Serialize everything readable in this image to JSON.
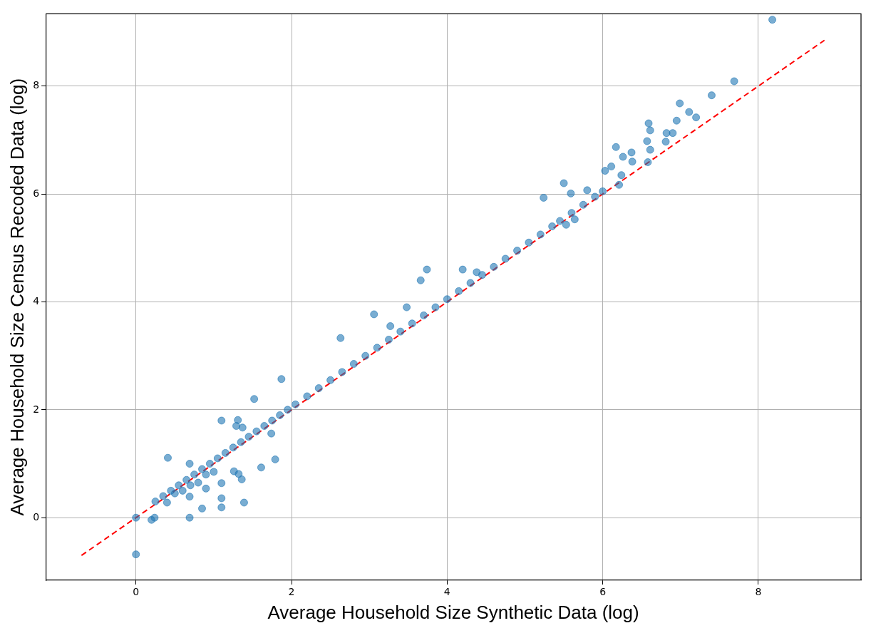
{
  "chart_data": {
    "type": "scatter",
    "xlabel": "Average Household Size Synthetic Data (log)",
    "ylabel": "Average Household Size Census Recoded Data (log)",
    "xlim": [
      -1.16,
      9.32
    ],
    "ylim": [
      -1.16,
      9.34
    ],
    "xticks": [
      0,
      2,
      4,
      6,
      8
    ],
    "yticks": [
      0,
      2,
      4,
      6,
      8
    ],
    "grid": true,
    "series": [
      {
        "marker": "circle",
        "color": "#1f77b4",
        "x": [
          8.18,
          7.69,
          7.4,
          6.99,
          7.11,
          7.2,
          6.95,
          6.9,
          6.82,
          6.81,
          6.59,
          6.61,
          6.57,
          6.61,
          6.58,
          6.17,
          6.26,
          6.37,
          6.38,
          6.24,
          6.21,
          6.03,
          6.11,
          5.5,
          5.24,
          5.59,
          5.64,
          5.53,
          5.8,
          3.74,
          3.66,
          4.2,
          4.38,
          3.48,
          3.06,
          3.27,
          2.63,
          1.87,
          1.52,
          1.31,
          1.1,
          1.29,
          1.37,
          1.79,
          1.61,
          1.74,
          0.41,
          0.69,
          1.1,
          1.1,
          1.1,
          1.39,
          1.32,
          1.36,
          0.85,
          0.69,
          0,
          0,
          0.2,
          0.24,
          0.9,
          0.69,
          1.26,
          0.25,
          0.35,
          0.45,
          0.55,
          0.65,
          0.75,
          0.85,
          0.95,
          1.05,
          1.15,
          1.25,
          1.35,
          1.45,
          1.55,
          1.65,
          1.75,
          1.85,
          1.95,
          2.05,
          2.2,
          2.35,
          2.5,
          2.65,
          2.8,
          2.95,
          3.1,
          3.25,
          3.4,
          3.55,
          3.7,
          3.85,
          4.0,
          4.15,
          4.3,
          4.45,
          4.6,
          4.75,
          4.9,
          5.05,
          5.2,
          5.35,
          5.45,
          5.6,
          5.75,
          5.9,
          6.0,
          0.5,
          0.7,
          0.9,
          0.6,
          0.8,
          1.0,
          0.4
        ],
        "values": [
          9.23,
          8.09,
          7.83,
          7.68,
          7.52,
          7.42,
          7.36,
          7.13,
          7.13,
          6.97,
          7.31,
          7.18,
          6.98,
          6.82,
          6.59,
          6.87,
          6.69,
          6.77,
          6.6,
          6.35,
          6.17,
          6.43,
          6.51,
          6.2,
          5.93,
          6.01,
          5.53,
          5.43,
          6.07,
          4.6,
          4.4,
          4.6,
          4.55,
          3.9,
          3.77,
          3.55,
          3.33,
          2.57,
          2.2,
          1.81,
          1.8,
          1.7,
          1.67,
          1.08,
          0.93,
          1.56,
          1.11,
          1.0,
          0.64,
          0.36,
          0.19,
          0.28,
          0.81,
          0.71,
          0.17,
          0,
          0,
          -0.68,
          -0.04,
          0,
          0.54,
          0.39,
          0.86,
          0.3,
          0.4,
          0.5,
          0.6,
          0.7,
          0.8,
          0.9,
          1.0,
          1.1,
          1.2,
          1.3,
          1.4,
          1.5,
          1.6,
          1.7,
          1.8,
          1.9,
          2.0,
          2.1,
          2.25,
          2.4,
          2.55,
          2.7,
          2.85,
          3.0,
          3.15,
          3.3,
          3.45,
          3.6,
          3.75,
          3.9,
          4.05,
          4.2,
          4.35,
          4.5,
          4.65,
          4.8,
          4.95,
          5.1,
          5.25,
          5.4,
          5.5,
          5.65,
          5.8,
          5.95,
          6.05,
          0.45,
          0.6,
          0.8,
          0.5,
          0.65,
          0.85,
          0.28
        ]
      },
      {
        "type": "line",
        "marker": "none",
        "color": "#ff0000",
        "line_style": "dashed",
        "x": [
          -0.7,
          8.85
        ],
        "values": [
          -0.7,
          8.85
        ]
      }
    ]
  }
}
